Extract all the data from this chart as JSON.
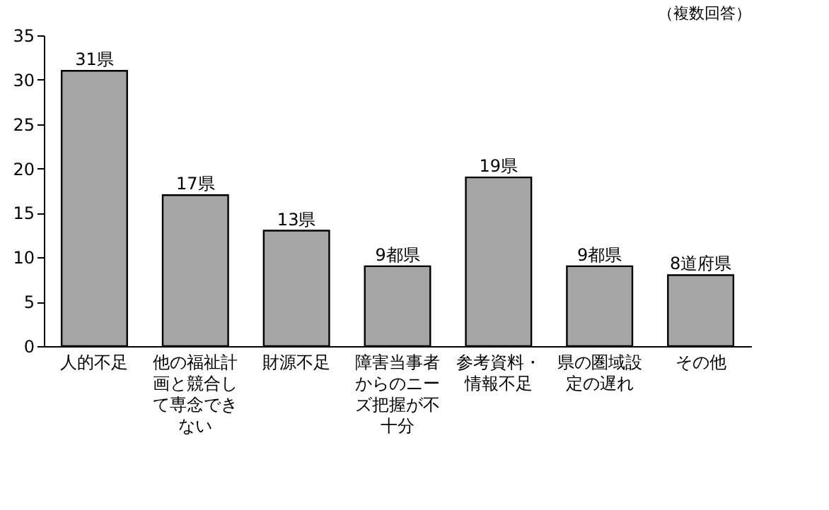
{
  "chart_data": {
    "type": "bar",
    "categories": [
      "人的不足",
      "他の福祉計画と競合して専念できない",
      "財源不足",
      "障害当事者からのニーズ把握が不十分",
      "参考資料・情報不足",
      "県の圏域設定の遅れ",
      "その他"
    ],
    "values": [
      31,
      17,
      13,
      9,
      19,
      9,
      8
    ],
    "value_labels": [
      "31県",
      "17県",
      "13県",
      "9都県",
      "19県",
      "9都県",
      "8道府県"
    ],
    "color": "#a6a6a6",
    "ylim": [
      0,
      35
    ],
    "yticks": [
      0,
      5,
      10,
      15,
      20,
      25,
      30,
      35
    ],
    "grid": false,
    "annotations": [
      "（複数回答）"
    ]
  }
}
